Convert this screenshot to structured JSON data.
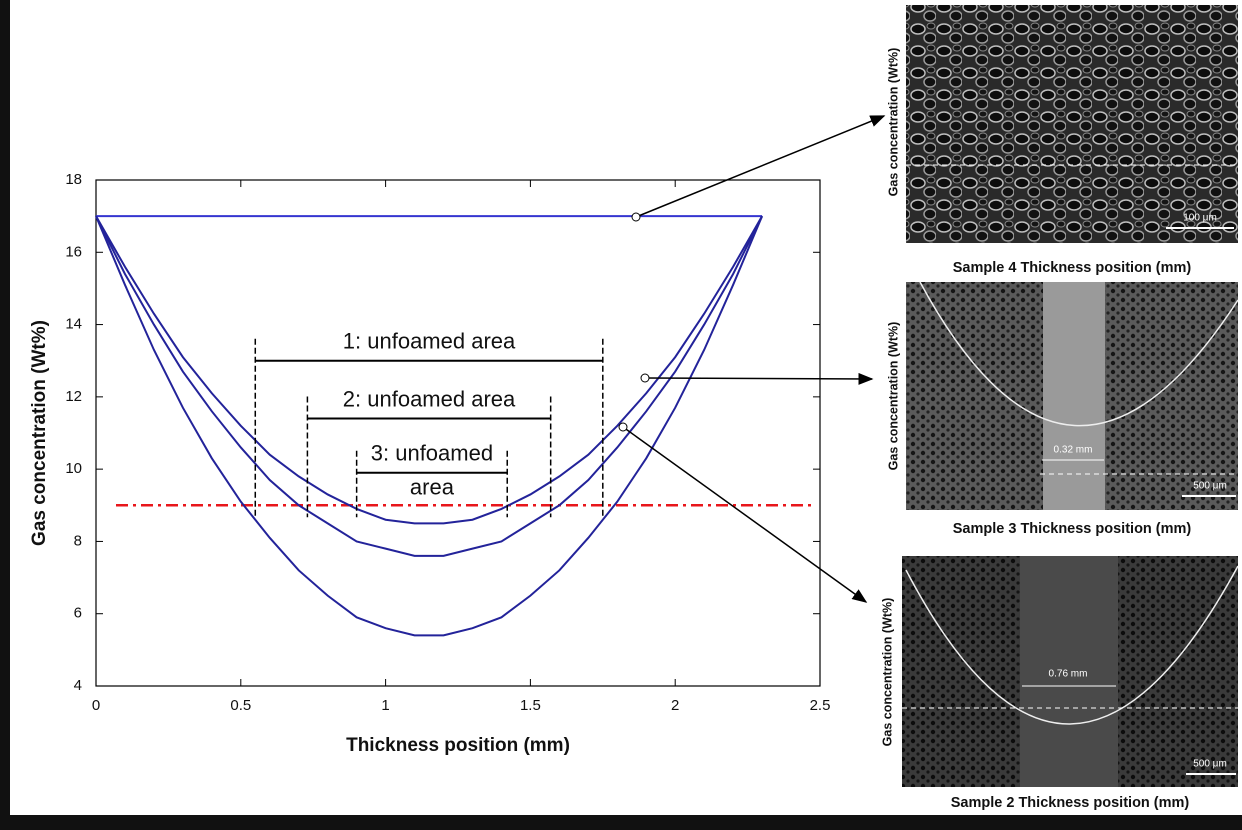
{
  "chart_data": {
    "type": "line",
    "xlabel": "Thickness position (mm)",
    "ylabel": "Gas concentration (Wt%)",
    "x": [
      0,
      0.1,
      0.2,
      0.3,
      0.4,
      0.5,
      0.6,
      0.7,
      0.8,
      0.9,
      1.0,
      1.1,
      1.2,
      1.3,
      1.4,
      1.5,
      1.6,
      1.7,
      1.8,
      1.9,
      2.0,
      2.1,
      2.2,
      2.3
    ],
    "series": [
      {
        "color": "#3535d0",
        "values": [
          17,
          17,
          17,
          17,
          17,
          17,
          17,
          17,
          17,
          17,
          17,
          17,
          17,
          17,
          17,
          17,
          17,
          17,
          17,
          17,
          17,
          17,
          17,
          17
        ]
      },
      {
        "color": "#23239a",
        "values": [
          17,
          15.6,
          14.3,
          13.1,
          12.1,
          11.2,
          10.4,
          9.8,
          9.3,
          8.9,
          8.6,
          8.5,
          8.5,
          8.6,
          8.9,
          9.3,
          9.8,
          10.4,
          11.2,
          12.1,
          13.1,
          14.3,
          15.6,
          17
        ]
      },
      {
        "color": "#23239a",
        "values": [
          17,
          15.4,
          14.0,
          12.7,
          11.6,
          10.6,
          9.7,
          9.0,
          8.5,
          8.0,
          7.8,
          7.6,
          7.6,
          7.8,
          8.0,
          8.5,
          9.0,
          9.7,
          10.6,
          11.6,
          12.7,
          14.0,
          15.4,
          17
        ]
      },
      {
        "color": "#23239a",
        "values": [
          17,
          15.1,
          13.3,
          11.7,
          10.3,
          9.1,
          8.1,
          7.2,
          6.5,
          5.9,
          5.6,
          5.4,
          5.4,
          5.6,
          5.9,
          6.5,
          7.2,
          8.1,
          9.1,
          10.3,
          11.7,
          13.3,
          15.1,
          17
        ]
      }
    ],
    "reference_line": {
      "y": 9,
      "color": "#e8161b"
    },
    "annotations": [
      {
        "text": [
          "1: unfoamed area"
        ],
        "x": [
          0.55,
          1.75
        ],
        "y": 13
      },
      {
        "text": [
          "2: unfoamed area"
        ],
        "x": [
          0.73,
          1.57
        ],
        "y": 11.4
      },
      {
        "text": [
          "3: unfoamed",
          "area"
        ],
        "x": [
          0.9,
          1.42
        ],
        "y": 9.9
      }
    ],
    "xlim": [
      0,
      2.5
    ],
    "ylim": [
      4,
      18
    ],
    "xticks": [
      0,
      0.5,
      1,
      1.5,
      2,
      2.5
    ],
    "yticks": [
      4,
      6,
      8,
      10,
      12,
      14,
      16,
      18
    ],
    "grid": false
  },
  "panels": [
    {
      "ylabel": "Gas concentration (Wt%)",
      "caption": "Sample 4 Thickness position (mm)",
      "scale": "100 μm"
    },
    {
      "ylabel": "Gas concentration (Wt%)",
      "caption": "Sample 3 Thickness position (mm)",
      "scale": "500 μm",
      "width": "0.32 mm"
    },
    {
      "ylabel": "Gas concentration (Wt%)",
      "caption": "Sample 2 Thickness position (mm)",
      "scale": "500 μm",
      "width": "0.76 mm"
    }
  ]
}
